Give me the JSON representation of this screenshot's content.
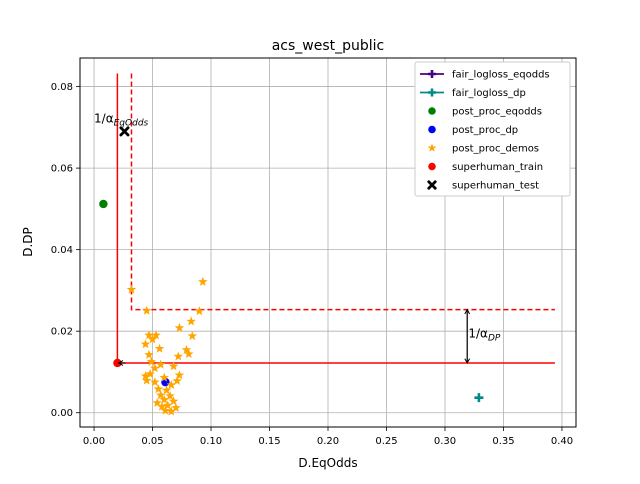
{
  "chart_data": {
    "type": "scatter",
    "title": "acs_west_public",
    "xlabel": "D.EqOdds",
    "ylabel": "D.DP",
    "xlim": [
      -0.012,
      0.412
    ],
    "ylim": [
      -0.0035,
      0.087
    ],
    "xticks": [
      0.0,
      0.05,
      0.1,
      0.15,
      0.2,
      0.25,
      0.3,
      0.35,
      0.4
    ],
    "xtick_labels": [
      "0.00",
      "0.05",
      "0.10",
      "0.15",
      "0.20",
      "0.25",
      "0.30",
      "0.35",
      "0.40"
    ],
    "yticks": [
      0.0,
      0.02,
      0.04,
      0.06,
      0.08
    ],
    "ytick_labels": [
      "0.00",
      "0.02",
      "0.04",
      "0.06",
      "0.08"
    ],
    "grid": true,
    "legend_position": "top-right",
    "series": [
      {
        "name": "fair_logloss_eqodds",
        "kind": "errorbar",
        "color": "#4b0082",
        "marker": "plus",
        "points": []
      },
      {
        "name": "fair_logloss_dp",
        "kind": "errorbar",
        "color": "#008b8b",
        "marker": "plus",
        "points": [
          [
            0.329,
            0.0037
          ]
        ]
      },
      {
        "name": "post_proc_eqodds",
        "kind": "scatter",
        "color": "#008000",
        "marker": "circle",
        "points": [
          [
            0.008,
            0.0512
          ]
        ]
      },
      {
        "name": "post_proc_dp",
        "kind": "scatter",
        "color": "#0000ff",
        "marker": "circle",
        "points": [
          [
            0.061,
            0.0075
          ]
        ]
      },
      {
        "name": "post_proc_demos",
        "kind": "scatter",
        "color": "#ffa500",
        "marker": "star",
        "points": [
          [
            0.093,
            0.0321
          ],
          [
            0.032,
            0.0302
          ],
          [
            0.045,
            0.025
          ],
          [
            0.09,
            0.0249
          ],
          [
            0.083,
            0.0224
          ],
          [
            0.073,
            0.0208
          ],
          [
            0.047,
            0.019
          ],
          [
            0.053,
            0.019
          ],
          [
            0.084,
            0.0188
          ],
          [
            0.05,
            0.018
          ],
          [
            0.044,
            0.0168
          ],
          [
            0.056,
            0.0157
          ],
          [
            0.079,
            0.0154
          ],
          [
            0.047,
            0.0142
          ],
          [
            0.081,
            0.0144
          ],
          [
            0.072,
            0.0138
          ],
          [
            0.049,
            0.0125
          ],
          [
            0.057,
            0.0118
          ],
          [
            0.052,
            0.0109
          ],
          [
            0.068,
            0.0114
          ],
          [
            0.073,
            0.0092
          ],
          [
            0.044,
            0.009
          ],
          [
            0.048,
            0.0095
          ],
          [
            0.06,
            0.0086
          ],
          [
            0.071,
            0.0078
          ],
          [
            0.045,
            0.0079
          ],
          [
            0.052,
            0.0075
          ],
          [
            0.066,
            0.0068
          ],
          [
            0.055,
            0.0058
          ],
          [
            0.062,
            0.0055
          ],
          [
            0.057,
            0.0043
          ],
          [
            0.065,
            0.0041
          ],
          [
            0.06,
            0.0032
          ],
          [
            0.054,
            0.0024
          ],
          [
            0.068,
            0.0028
          ],
          [
            0.063,
            0.0018
          ],
          [
            0.058,
            0.0015
          ],
          [
            0.07,
            0.0012
          ],
          [
            0.061,
            0.0005
          ],
          [
            0.066,
            0.0003
          ]
        ]
      },
      {
        "name": "superhuman_train",
        "kind": "scatter",
        "color": "#ff0000",
        "marker": "circle",
        "points": [
          [
            0.02,
            0.0122
          ]
        ]
      },
      {
        "name": "superhuman_test",
        "kind": "scatter",
        "color": "#000000",
        "marker": "x",
        "points": [
          [
            0.026,
            0.069
          ]
        ]
      }
    ],
    "reference_lines": [
      {
        "style": "solid",
        "color": "#ff0000",
        "points": [
          [
            0.02,
            0.0832
          ],
          [
            0.02,
            0.0122
          ],
          [
            0.394,
            0.0122
          ]
        ]
      },
      {
        "style": "dashed",
        "color": "#ff0000",
        "points": [
          [
            0.032,
            0.0832
          ],
          [
            0.032,
            0.0253
          ],
          [
            0.394,
            0.0253
          ]
        ]
      }
    ],
    "annotations": [
      {
        "text_main": "1/α",
        "text_sub": "EqOdds",
        "x": 0.0,
        "y": 0.0712,
        "arrow_from": [
          0.027,
          0.0122
        ],
        "arrow_to": [
          0.021,
          0.0122
        ]
      },
      {
        "text_main": "1/α",
        "text_sub": "DP",
        "x": 0.32,
        "y": 0.0185,
        "arrow_from": [
          0.319,
          0.0253
        ],
        "arrow_to": [
          0.319,
          0.0122
        ]
      }
    ]
  }
}
